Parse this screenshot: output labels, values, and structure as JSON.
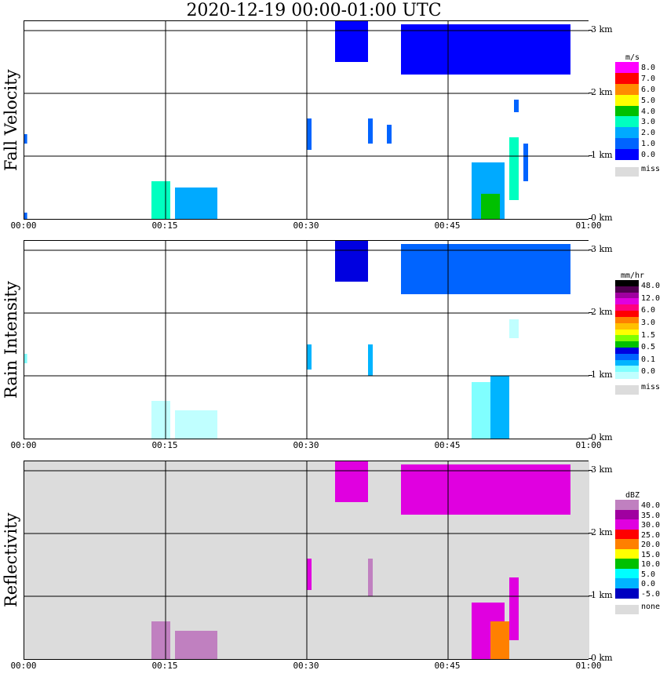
{
  "title": "2020-12-19   00:00-01:00 UTC",
  "x_ticks": [
    "00:00",
    "00:15",
    "00:30",
    "00:45",
    "01:00"
  ],
  "y_ticks": [
    "0 km",
    "1 km",
    "2 km",
    "3 km"
  ],
  "colors": {
    "missing": "#dcdcdc",
    "grid": "#000000"
  },
  "chart_data": [
    {
      "type": "heatmap",
      "panel": "fall_velocity",
      "title": "Fall Velocity",
      "ylabel": "Fall Velocity",
      "xlabel": "",
      "x_range": [
        "00:00",
        "01:00"
      ],
      "y_range_km": [
        0,
        3.15
      ],
      "colorbar_unit": "m/s",
      "colorbar_labels": [
        "8.0",
        "7.0",
        "6.0",
        "5.0",
        "4.0",
        "3.0",
        "2.0",
        "1.0",
        "0.0"
      ],
      "colorbar_colors": [
        "#ff00ff",
        "#ff0000",
        "#ff8c00",
        "#ffff00",
        "#00c000",
        "#00ffc0",
        "#00aaff",
        "#0064ff",
        "#0000ff"
      ],
      "missing_label": "miss",
      "background": "#ffffff",
      "features": [
        {
          "t0": 0.0,
          "t1": 0.3,
          "z0": 0.0,
          "z1": 0.1,
          "v": 1
        },
        {
          "t0": 0.0,
          "t1": 0.3,
          "z0": 1.2,
          "z1": 1.35,
          "v": 1
        },
        {
          "t0": 13.5,
          "t1": 15.5,
          "z0": 0.0,
          "z1": 0.6,
          "v": 3
        },
        {
          "t0": 16.0,
          "t1": 20.5,
          "z0": 0.0,
          "z1": 0.5,
          "v": 2
        },
        {
          "t0": 30.0,
          "t1": 30.5,
          "z0": 1.1,
          "z1": 1.6,
          "v": 1
        },
        {
          "t0": 33.0,
          "t1": 36.5,
          "z0": 2.5,
          "z1": 3.15,
          "v": 0
        },
        {
          "t0": 40.0,
          "t1": 58.0,
          "z0": 2.3,
          "z1": 3.1,
          "v": 0
        },
        {
          "t0": 36.5,
          "t1": 37.0,
          "z0": 1.2,
          "z1": 1.6,
          "v": 1
        },
        {
          "t0": 38.5,
          "t1": 39.0,
          "z0": 1.2,
          "z1": 1.5,
          "v": 1
        },
        {
          "t0": 47.5,
          "t1": 51.0,
          "z0": 0.0,
          "z1": 0.9,
          "v": 2
        },
        {
          "t0": 48.5,
          "t1": 50.5,
          "z0": 0.0,
          "z1": 0.4,
          "v": 4
        },
        {
          "t0": 51.5,
          "t1": 52.5,
          "z0": 0.3,
          "z1": 1.3,
          "v": 3
        },
        {
          "t0": 52.0,
          "t1": 52.5,
          "z0": 1.7,
          "z1": 1.9,
          "v": 1
        },
        {
          "t0": 53.0,
          "t1": 53.5,
          "z0": 0.6,
          "z1": 1.2,
          "v": 1
        }
      ]
    },
    {
      "type": "heatmap",
      "panel": "rain_intensity",
      "title": "Rain Intensity",
      "ylabel": "Rain Intensity",
      "xlabel": "",
      "x_range": [
        "00:00",
        "01:00"
      ],
      "y_range_km": [
        0,
        3.15
      ],
      "colorbar_unit": "mm/hr",
      "colorbar_labels": [
        "48.0",
        "12.0",
        "6.0",
        "3.0",
        "1.5",
        "0.5",
        "0.1",
        "0.0"
      ],
      "colorbar_colors": [
        "#000000",
        "#500050",
        "#a000a0",
        "#e000e0",
        "#ff0080",
        "#ff0000",
        "#ff8000",
        "#ffc000",
        "#ffff00",
        "#80ff00",
        "#00c000",
        "#0000e0",
        "#0064ff",
        "#00b4ff",
        "#80ffff",
        "#c0ffff"
      ],
      "missing_label": "miss",
      "background": "#ffffff",
      "features": [
        {
          "t0": 0.0,
          "t1": 0.3,
          "z0": 1.2,
          "z1": 1.35,
          "v": 1
        },
        {
          "t0": 13.5,
          "t1": 15.5,
          "z0": 0.0,
          "z1": 0.6,
          "v": 0
        },
        {
          "t0": 16.0,
          "t1": 20.5,
          "z0": 0.0,
          "z1": 0.45,
          "v": 0
        },
        {
          "t0": 30.0,
          "t1": 30.5,
          "z0": 1.1,
          "z1": 1.5,
          "v": 2
        },
        {
          "t0": 33.0,
          "t1": 36.5,
          "z0": 2.5,
          "z1": 3.15,
          "v": 4
        },
        {
          "t0": 40.0,
          "t1": 58.0,
          "z0": 2.3,
          "z1": 3.1,
          "v": 3
        },
        {
          "t0": 36.5,
          "t1": 37.0,
          "z0": 1.0,
          "z1": 1.5,
          "v": 2
        },
        {
          "t0": 47.5,
          "t1": 51.0,
          "z0": 0.0,
          "z1": 0.9,
          "v": 1
        },
        {
          "t0": 49.5,
          "t1": 51.5,
          "z0": 0.0,
          "z1": 1.0,
          "v": 2
        },
        {
          "t0": 51.5,
          "t1": 52.5,
          "z0": 1.6,
          "z1": 1.9,
          "v": 0
        }
      ]
    },
    {
      "type": "heatmap",
      "panel": "reflectivity",
      "title": "Reflectivity",
      "ylabel": "Reflectivity",
      "xlabel": "",
      "x_range": [
        "00:00",
        "01:00"
      ],
      "y_range_km": [
        0,
        3.15
      ],
      "colorbar_unit": "dBZ",
      "colorbar_labels": [
        "40.0",
        "35.0",
        "30.0",
        "25.0",
        "20.0",
        "15.0",
        "10.0",
        "5.0",
        "0.0",
        "-5.0"
      ],
      "colorbar_colors": [
        "#c080c0",
        "#a000a0",
        "#e000e0",
        "#ff0000",
        "#ff8000",
        "#ffff00",
        "#00c000",
        "#00ffff",
        "#00b4ff",
        "#0000c0"
      ],
      "missing_label": "none",
      "background": "#dcdcdc",
      "features": [
        {
          "t0": 13.5,
          "t1": 15.5,
          "z0": 0.0,
          "z1": 0.6,
          "v": 9
        },
        {
          "t0": 16.0,
          "t1": 20.5,
          "z0": 0.0,
          "z1": 0.45,
          "v": 9
        },
        {
          "t0": 30.0,
          "t1": 30.5,
          "z0": 1.1,
          "z1": 1.6,
          "v": 7
        },
        {
          "t0": 33.0,
          "t1": 36.5,
          "z0": 2.5,
          "z1": 3.15,
          "v": 7
        },
        {
          "t0": 40.0,
          "t1": 58.0,
          "z0": 2.3,
          "z1": 3.1,
          "v": 7
        },
        {
          "t0": 36.5,
          "t1": 37.0,
          "z0": 1.0,
          "z1": 1.6,
          "v": 9
        },
        {
          "t0": 47.5,
          "t1": 51.0,
          "z0": 0.0,
          "z1": 0.9,
          "v": 7
        },
        {
          "t0": 49.5,
          "t1": 51.5,
          "z0": 0.0,
          "z1": 0.6,
          "v": 5
        },
        {
          "t0": 51.5,
          "t1": 52.5,
          "z0": 0.3,
          "z1": 1.3,
          "v": 7
        }
      ]
    }
  ]
}
